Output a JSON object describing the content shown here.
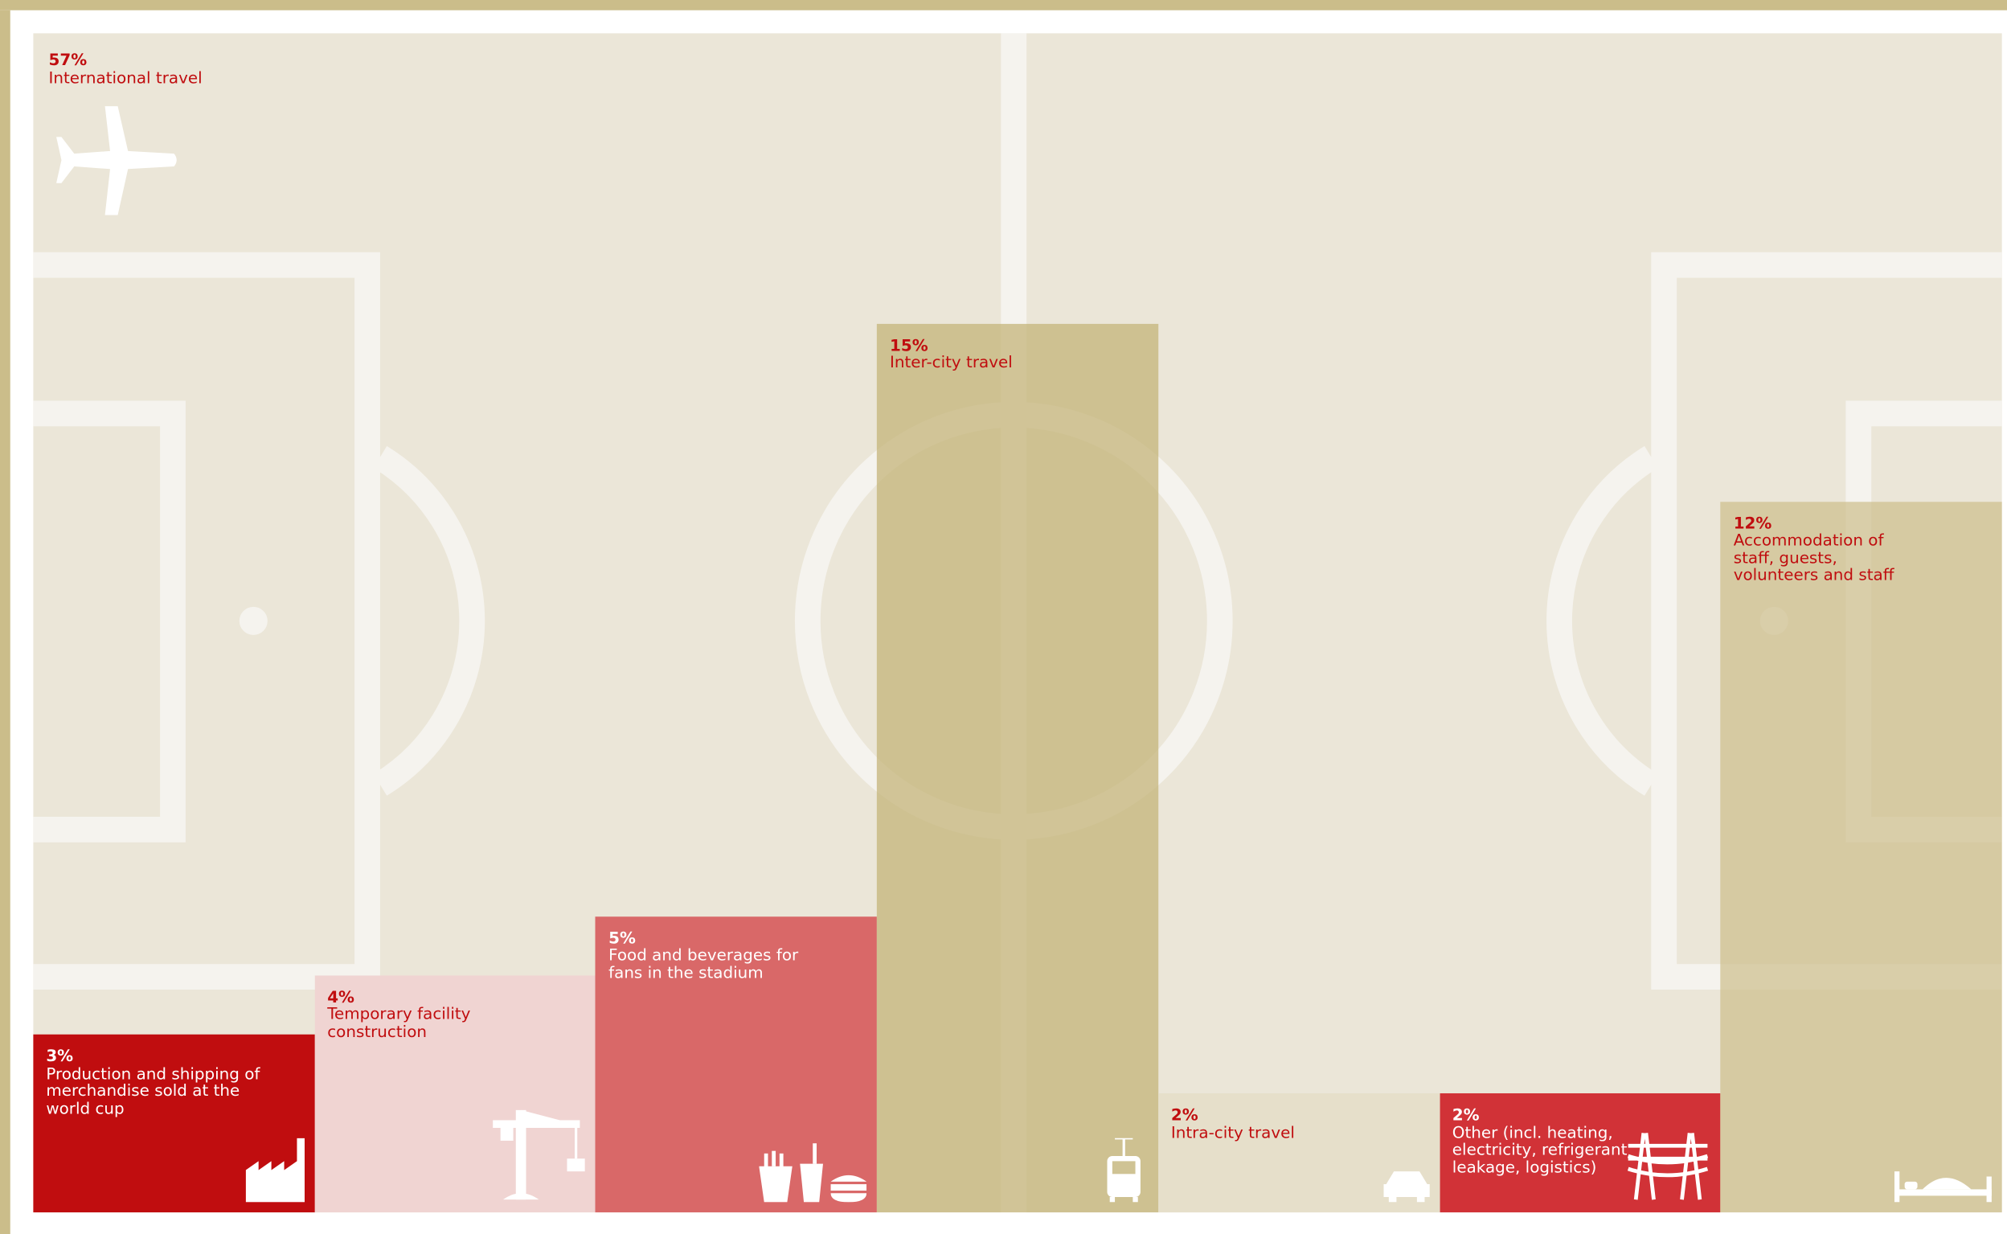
{
  "chart_data": {
    "type": "bar",
    "categories": [
      "International travel",
      "Production and shipping of merchandise sold at the world cup",
      "Temporary facility construction",
      "Food and beverages for fans in the stadium",
      "Inter-city travel",
      "Intra-city travel",
      "Other (incl. heating, electricity, refrigerant leakage, logistics)",
      "Accommodation of staff, guests, volunteers and staff"
    ],
    "values": [
      57,
      3,
      4,
      5,
      15,
      2,
      2,
      12
    ],
    "value_labels": [
      "57%",
      "3%",
      "4%",
      "5%",
      "15%",
      "2%",
      "2%",
      "12%"
    ],
    "colors": [
      "#ebe6d8",
      "#c00d0f",
      "#f0d4d2",
      "#d96868",
      "rgba(196,180,122,0.75)",
      "#e6dfca",
      "#d13237",
      "rgba(205,190,140,0.7)"
    ]
  }
}
